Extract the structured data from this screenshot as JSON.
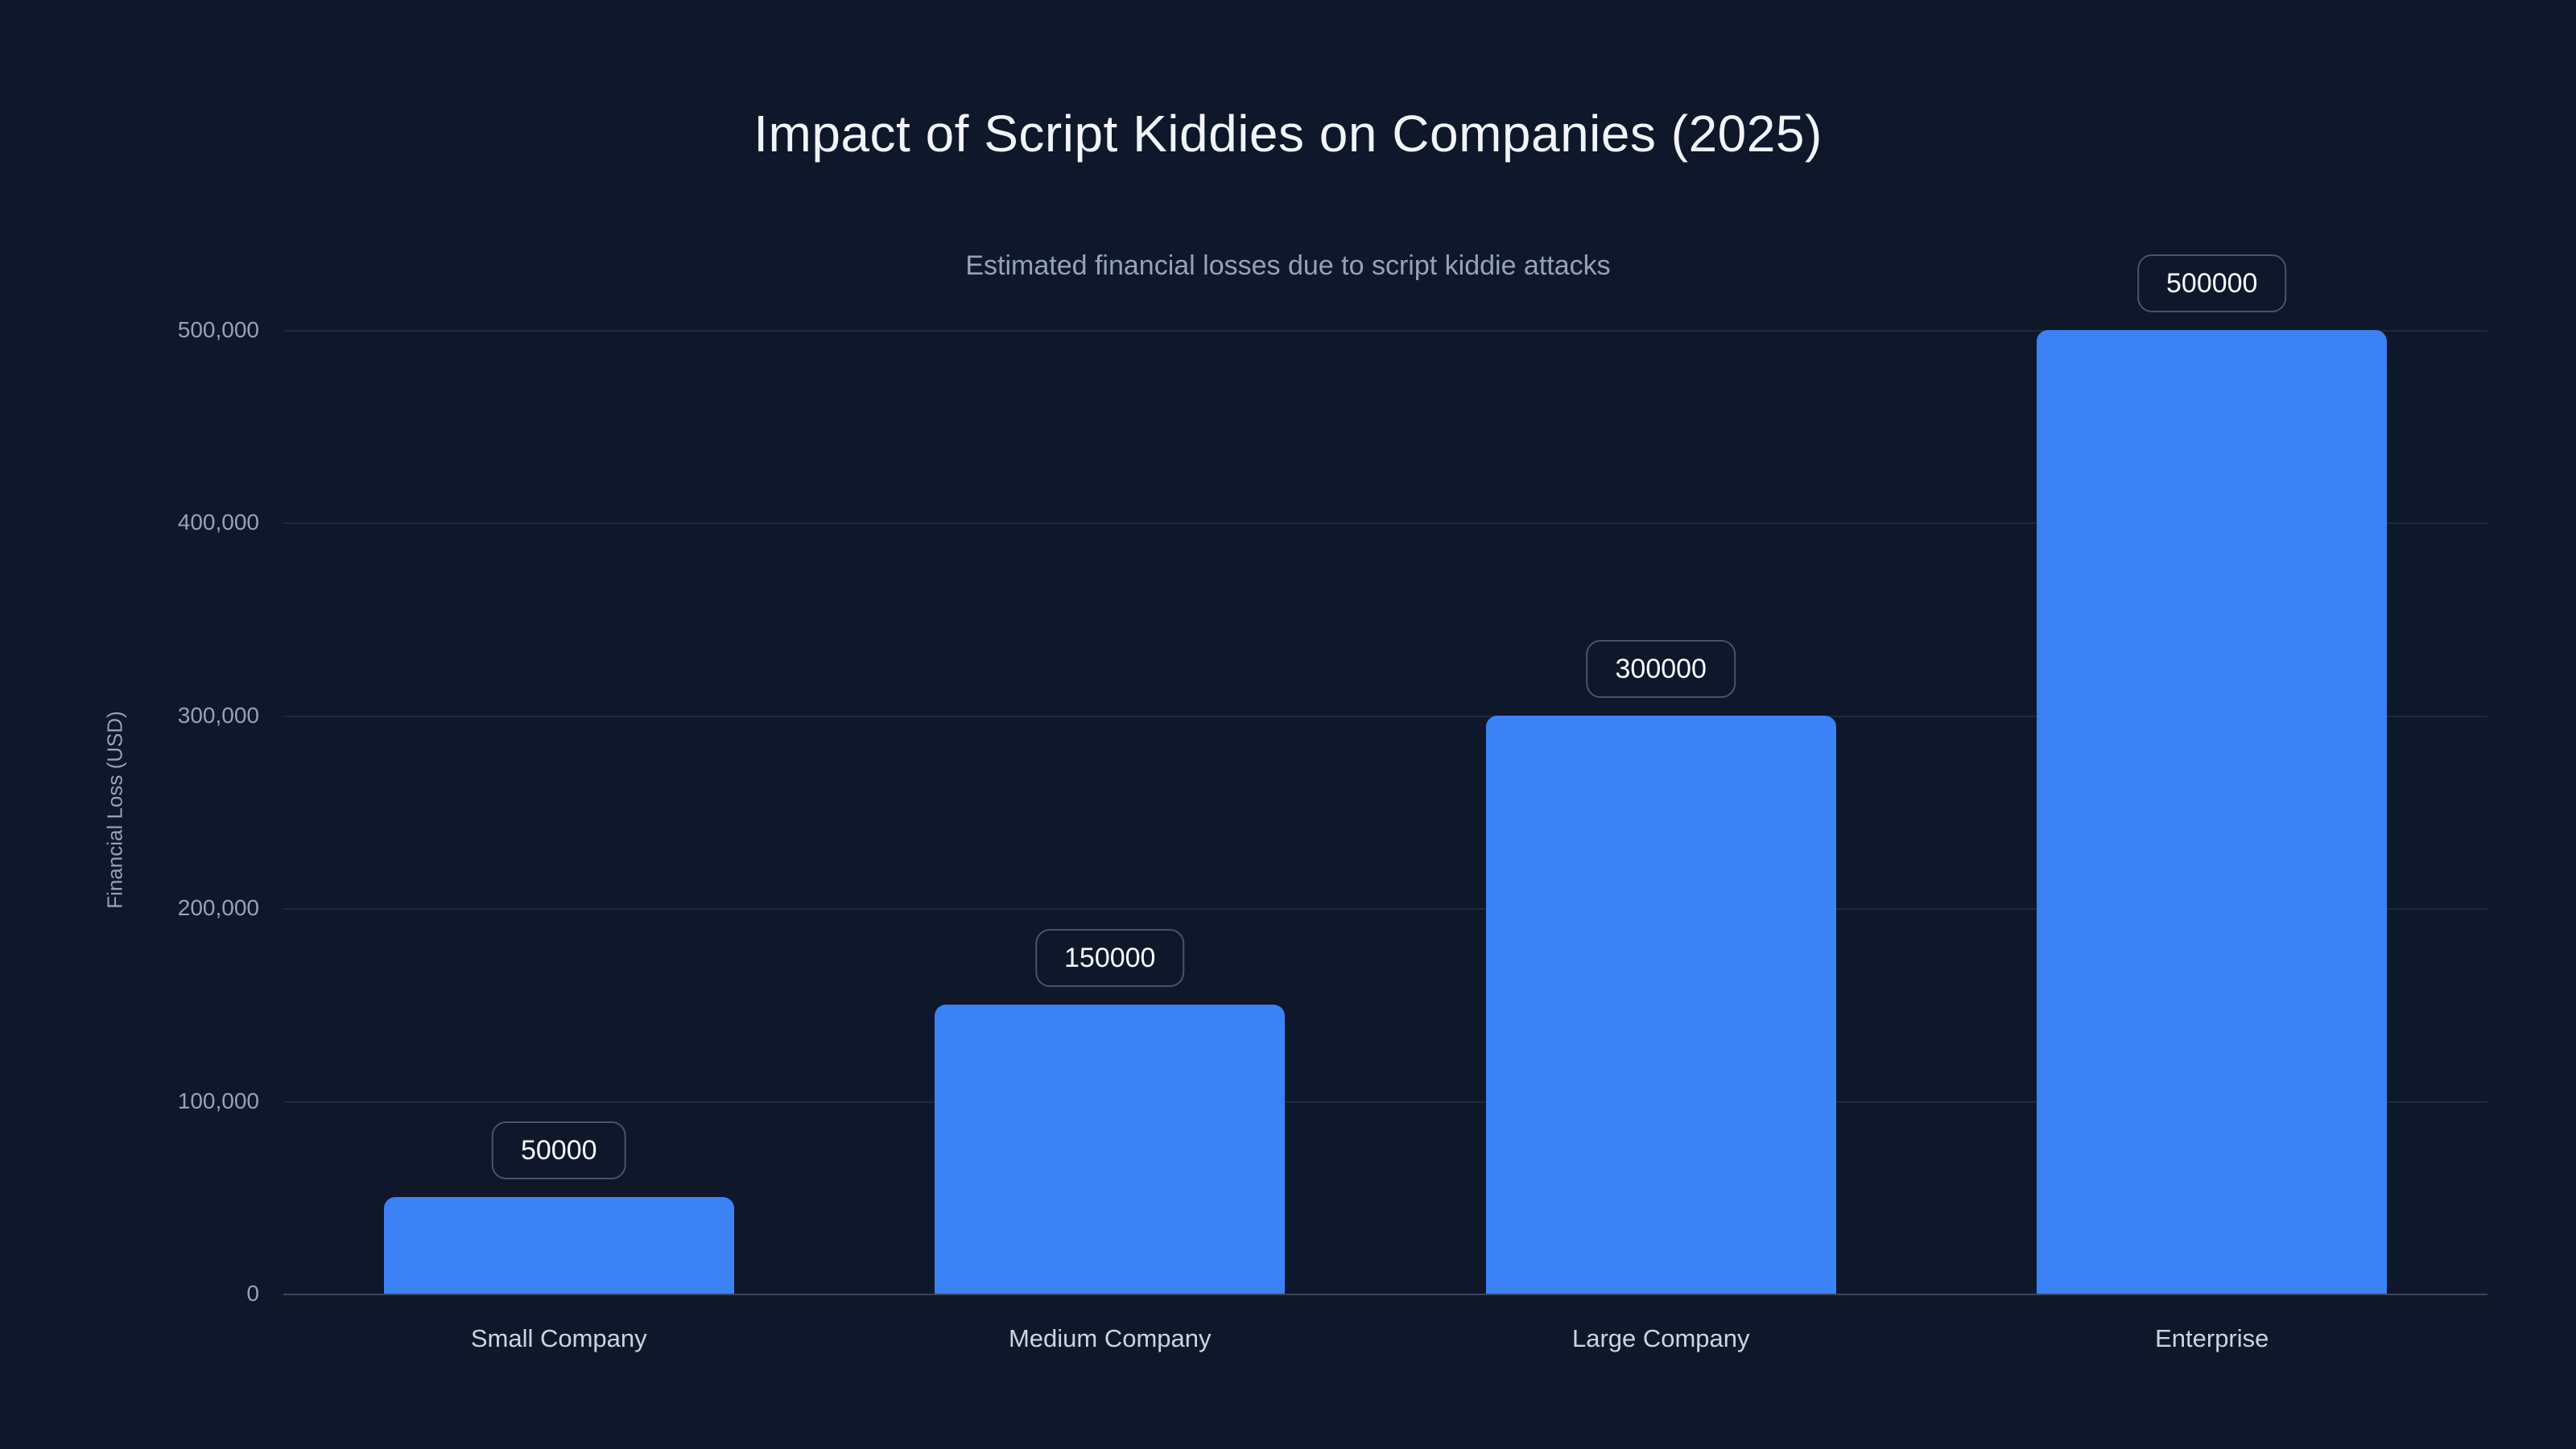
{
  "chart": {
    "title": "Impact of Script Kiddies on Companies (2025)",
    "subtitle": "Estimated financial losses due to script kiddie attacks",
    "y_axis_label": "Financial Loss (USD)"
  },
  "chart_data": {
    "type": "bar",
    "title": "Impact of Script Kiddies on Companies (2025)",
    "subtitle": "Estimated financial losses due to script kiddie attacks",
    "xlabel": "",
    "ylabel": "Financial Loss (USD)",
    "categories": [
      "Small Company",
      "Medium Company",
      "Large Company",
      "Enterprise"
    ],
    "values": [
      50000,
      150000,
      300000,
      500000
    ],
    "value_labels": [
      "50000",
      "150000",
      "300000",
      "500000"
    ],
    "ylim": [
      0,
      500000
    ],
    "y_ticks": [
      {
        "value": 0,
        "label": "0"
      },
      {
        "value": 100000,
        "label": "100,000"
      },
      {
        "value": 200000,
        "label": "200,000"
      },
      {
        "value": 300000,
        "label": "300,000"
      },
      {
        "value": 400000,
        "label": "400,000"
      },
      {
        "value": 500000,
        "label": "500,000"
      }
    ],
    "grid": "horizontal",
    "legend": "none",
    "colors": {
      "background": "#0f172a",
      "bar": "#3b82f6",
      "title_text": "#f1f5f9",
      "muted_text": "#94a3b8",
      "category_text": "#cbd5e1",
      "gridline": "#1e293b",
      "axis_line": "#3a465c",
      "badge_border": "#475569",
      "badge_text": "#f8fafc"
    }
  }
}
